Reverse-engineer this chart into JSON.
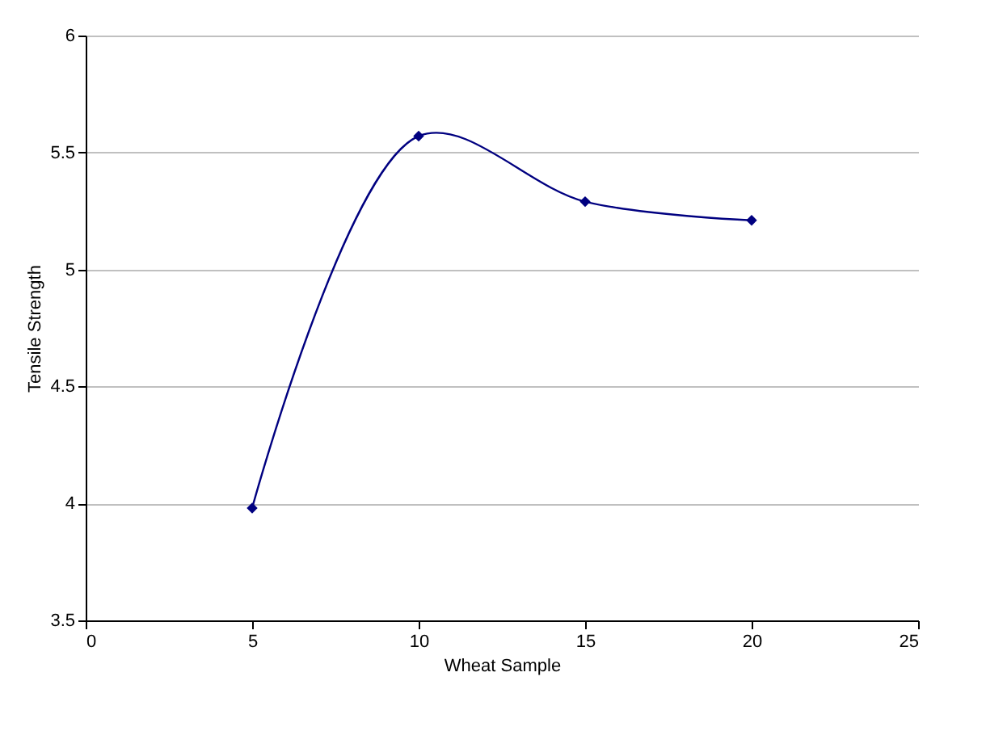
{
  "chart_data": {
    "type": "line",
    "xlabel": "Wheat Sample",
    "ylabel": "Tensile Strength",
    "x": [
      5,
      10,
      15,
      20
    ],
    "series": [
      {
        "color": "#000080",
        "values": [
          3.98,
          5.57,
          5.29,
          5.21
        ]
      }
    ],
    "xlim": [
      0,
      25
    ],
    "xticks": [
      0,
      5,
      10,
      15,
      20,
      25
    ],
    "ylim": [
      3.5,
      6
    ],
    "yticks": [
      3.5,
      4,
      4.5,
      5,
      5.5,
      6
    ],
    "grid": "y",
    "marker": "diamond",
    "line_style": "solid"
  }
}
